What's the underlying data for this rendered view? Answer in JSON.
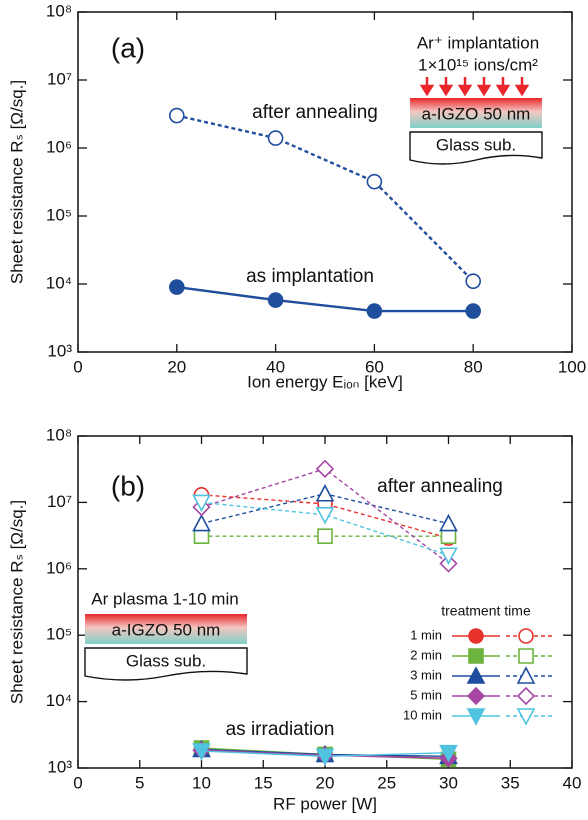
{
  "chart_data": [
    {
      "type": "line",
      "panel_label": "(a)",
      "log_y": true,
      "xlabel": "Ion energy Eᵢₒₙ [keV]",
      "ylabel": "Sheet resistance Rₛ [Ω/sq.]",
      "xlim": [
        0,
        100
      ],
      "xticks": [
        0,
        20,
        40,
        60,
        80,
        100
      ],
      "ylim": [
        1000,
        100000000
      ],
      "yticks": [
        {
          "value": 1000,
          "label": "10³"
        },
        {
          "value": 10000,
          "label": "10⁴"
        },
        {
          "value": 100000,
          "label": "10⁵"
        },
        {
          "value": 1000000,
          "label": "10⁶"
        },
        {
          "value": 10000000,
          "label": "10⁷"
        },
        {
          "value": 100000000,
          "label": "10⁸"
        }
      ],
      "x": [
        20,
        40,
        60,
        80
      ],
      "series": [
        {
          "name": "after annealing",
          "color": "#1f4e9c",
          "dashed": true,
          "filled": false,
          "marker": "circle",
          "values": [
            3000000,
            1400000,
            320000,
            11000
          ]
        },
        {
          "name": "as implantation",
          "color": "#1f4e9c",
          "dashed": false,
          "filled": true,
          "marker": "circle",
          "values": [
            9000,
            5800,
            4000,
            4000
          ]
        }
      ],
      "inset": {
        "title": "Ar⁺ implantation",
        "dose": "1×10¹⁵ ions/cm²",
        "film": "a-IGZO 50 nm",
        "substrate": "Glass sub."
      }
    },
    {
      "type": "line",
      "panel_label": "(b)",
      "log_y": true,
      "xlabel": "RF power [W]",
      "ylabel": "Sheet resistance Rₛ [Ω/sq.]",
      "xlim": [
        0,
        40
      ],
      "xticks": [
        0,
        5,
        10,
        15,
        20,
        25,
        30,
        35,
        40
      ],
      "ylim": [
        1000,
        100000000
      ],
      "yticks": [
        {
          "value": 1000,
          "label": "10³"
        },
        {
          "value": 10000,
          "label": "10⁴"
        },
        {
          "value": 100000,
          "label": "10⁵"
        },
        {
          "value": 1000000,
          "label": "10⁶"
        },
        {
          "value": 10000000,
          "label": "10⁷"
        },
        {
          "value": 100000000,
          "label": "10⁸"
        }
      ],
      "x": [
        10,
        20,
        30
      ],
      "legend_title": "treatment time",
      "annotations": [
        "after annealing",
        "as irradiation"
      ],
      "series": [
        {
          "name": "1 min",
          "color": "#e6312c",
          "marker": "circle",
          "values": [
            1900,
            1600,
            1400
          ],
          "annealed_values": [
            13000000,
            9500000,
            2900000
          ]
        },
        {
          "name": "2 min",
          "color": "#6db33f",
          "marker": "square",
          "values": [
            2000,
            1600,
            1350
          ],
          "annealed_values": [
            3100000,
            3100000,
            3100000
          ]
        },
        {
          "name": "3 min",
          "color": "#1f4ea0",
          "marker": "triangle",
          "values": [
            1900,
            1600,
            1500
          ],
          "annealed_values": [
            4800000,
            13500000,
            4800000
          ]
        },
        {
          "name": "5 min",
          "color": "#a545a5",
          "marker": "diamond",
          "values": [
            1850,
            1550,
            1400
          ],
          "annealed_values": [
            8500000,
            32000000,
            1200000
          ]
        },
        {
          "name": "10 min",
          "color": "#4fc3e0",
          "marker": "down-triangle",
          "values": [
            1800,
            1500,
            1700
          ],
          "annealed_values": [
            10000000,
            6500000,
            1600000
          ]
        }
      ],
      "inset": {
        "title": "Ar plasma 1-10 min",
        "film": "a-IGZO 50 nm",
        "substrate": "Glass sub."
      }
    }
  ]
}
